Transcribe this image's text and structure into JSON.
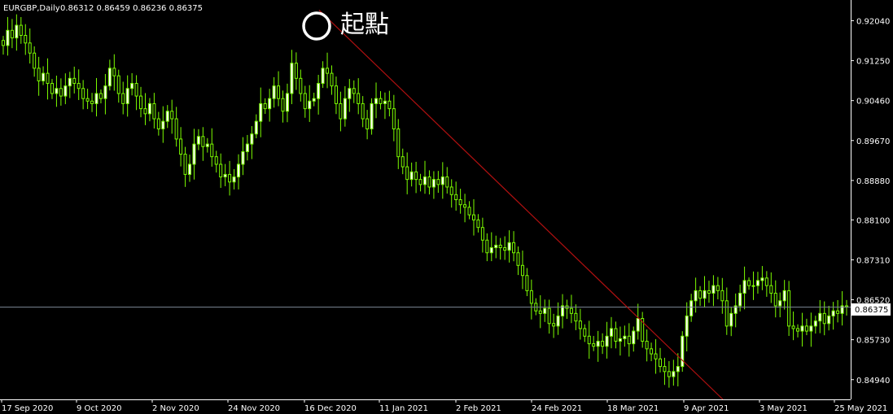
{
  "header": {
    "symbol": "EURGBP,Daily",
    "ohlc": "0.86312 0.86459 0.86236 0.86375"
  },
  "annotation": {
    "text": "起點",
    "marker": "circle"
  },
  "current_price": {
    "label": "0.86375",
    "value": 0.86375
  },
  "colors": {
    "background": "#000000",
    "candle": "#7cfc00",
    "bull_body": "#ffffff",
    "trendline": "#b01010",
    "price_line": "#7d8896",
    "axis": "#ffffff"
  },
  "chart_data": {
    "type": "candlestick",
    "title": "EURGBP,Daily",
    "ylim": [
      0.8455,
      0.9245
    ],
    "y_ticks": [
      "0.92040",
      "0.91250",
      "0.90460",
      "0.89670",
      "0.88880",
      "0.88100",
      "0.87310",
      "0.86520",
      "0.85730",
      "0.84940"
    ],
    "x_ticks": [
      "17 Sep 2020",
      "9 Oct 2020",
      "2 Nov 2020",
      "24 Nov 2020",
      "16 Dec 2020",
      "11 Jan 2021",
      "2 Feb 2021",
      "24 Feb 2021",
      "18 Mar 2021",
      "9 Apr 2021",
      "3 May 2021",
      "25 May 2021"
    ],
    "trendline": {
      "from": [
        "16 Dec 2020",
        0.9225
      ],
      "to": [
        "9 Apr 2021",
        0.8455
      ]
    },
    "legend": "none",
    "grid": false,
    "closes": [
      0.9155,
      0.9185,
      0.917,
      0.9195,
      0.9175,
      0.916,
      0.914,
      0.911,
      0.9085,
      0.91,
      0.908,
      0.906,
      0.907,
      0.9055,
      0.9075,
      0.909,
      0.908,
      0.907,
      0.905,
      0.9045,
      0.904,
      0.906,
      0.905,
      0.9075,
      0.911,
      0.9095,
      0.906,
      0.904,
      0.907,
      0.908,
      0.9055,
      0.903,
      0.902,
      0.904,
      0.901,
      0.899,
      0.9005,
      0.9025,
      0.901,
      0.897,
      0.894,
      0.89,
      0.892,
      0.896,
      0.8975,
      0.8955,
      0.896,
      0.8935,
      0.892,
      0.8895,
      0.89,
      0.8885,
      0.8895,
      0.892,
      0.8945,
      0.896,
      0.898,
      0.9005,
      0.904,
      0.903,
      0.905,
      0.9075,
      0.905,
      0.9025,
      0.906,
      0.912,
      0.909,
      0.906,
      0.903,
      0.9045,
      0.905,
      0.908,
      0.911,
      0.91,
      0.9075,
      0.904,
      0.901,
      0.905,
      0.907,
      0.906,
      0.904,
      0.901,
      0.899,
      0.904,
      0.905,
      0.904,
      0.9045,
      0.903,
      0.899,
      0.8935,
      0.8915,
      0.889,
      0.8905,
      0.889,
      0.888,
      0.8895,
      0.8875,
      0.889,
      0.888,
      0.8895,
      0.8875,
      0.886,
      0.885,
      0.884,
      0.8835,
      0.882,
      0.881,
      0.8795,
      0.877,
      0.8745,
      0.8755,
      0.876,
      0.8755,
      0.875,
      0.8765,
      0.8745,
      0.872,
      0.87,
      0.867,
      0.8645,
      0.863,
      0.8625,
      0.8635,
      0.8605,
      0.86,
      0.862,
      0.864,
      0.8635,
      0.8625,
      0.861,
      0.8595,
      0.858,
      0.8565,
      0.856,
      0.857,
      0.856,
      0.858,
      0.8595,
      0.857,
      0.8575,
      0.858,
      0.8565,
      0.859,
      0.8615,
      0.857,
      0.8555,
      0.8545,
      0.8535,
      0.852,
      0.851,
      0.85,
      0.851,
      0.852,
      0.858,
      0.862,
      0.865,
      0.867,
      0.8655,
      0.867,
      0.8665,
      0.868,
      0.867,
      0.865,
      0.86,
      0.8625,
      0.864,
      0.8665,
      0.869,
      0.868,
      0.868,
      0.869,
      0.8695,
      0.868,
      0.8665,
      0.864,
      0.865,
      0.867,
      0.86,
      0.8595,
      0.859,
      0.86,
      0.859,
      0.86,
      0.861,
      0.8625,
      0.8605,
      0.862,
      0.863,
      0.8625,
      0.864,
      0.8638
    ]
  }
}
